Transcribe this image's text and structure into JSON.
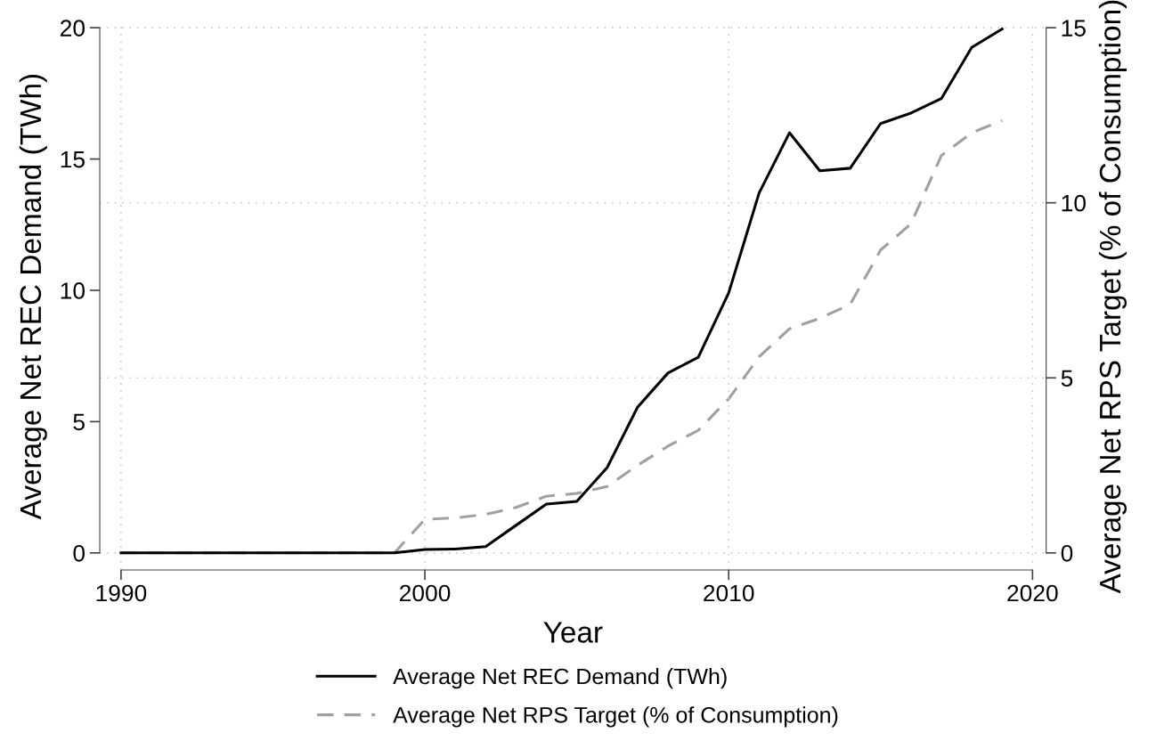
{
  "chart_data": {
    "type": "line",
    "xlabel": "Year",
    "ylabel": "Average Net REC Demand (TWh)",
    "y2label": "Average Net RPS Target (% of Consumption)",
    "x": [
      1990,
      1991,
      1992,
      1993,
      1994,
      1995,
      1996,
      1997,
      1998,
      1999,
      2000,
      2001,
      2002,
      2003,
      2004,
      2005,
      2006,
      2007,
      2008,
      2009,
      2010,
      2011,
      2012,
      2013,
      2014,
      2015,
      2016,
      2017,
      2018,
      2019
    ],
    "series": [
      {
        "name": "Average Net REC Demand (TWh)",
        "color": "#000000",
        "line_style": "solid",
        "values": [
          0,
          0,
          0,
          0,
          0,
          0,
          0,
          0,
          0,
          0,
          0.13,
          0.15,
          0.24,
          1.05,
          1.86,
          1.96,
          3.25,
          5.55,
          6.85,
          7.45,
          9.9,
          13.7,
          16.0,
          14.55,
          14.65,
          16.35,
          16.75,
          17.3,
          19.25,
          19.95
        ]
      },
      {
        "name": "Average Net RPS Target (% of Consumption)",
        "color": "#a0a0a0",
        "line_style": "dashed",
        "axis": "y2",
        "values": [
          0,
          0,
          0,
          0,
          0,
          0,
          0,
          0,
          0,
          0,
          0.96,
          1.0,
          1.1,
          1.3,
          1.62,
          1.7,
          1.9,
          2.5,
          3.05,
          3.5,
          4.4,
          5.6,
          6.4,
          6.7,
          7.1,
          8.65,
          9.4,
          11.35,
          12.0,
          12.35
        ]
      }
    ],
    "xlim": [
      1989.3,
      2020.45
    ],
    "xticks": [
      1990,
      2000,
      2010,
      2020
    ],
    "ylim": [
      -0.65,
      20.2
    ],
    "yticks": [
      0,
      5,
      10,
      15,
      20
    ],
    "y2lim": [
      -0.4875,
      15.15
    ],
    "y2ticks": [
      0,
      5,
      10,
      15
    ],
    "grid": true,
    "legend": "bottom",
    "marker": "none"
  }
}
